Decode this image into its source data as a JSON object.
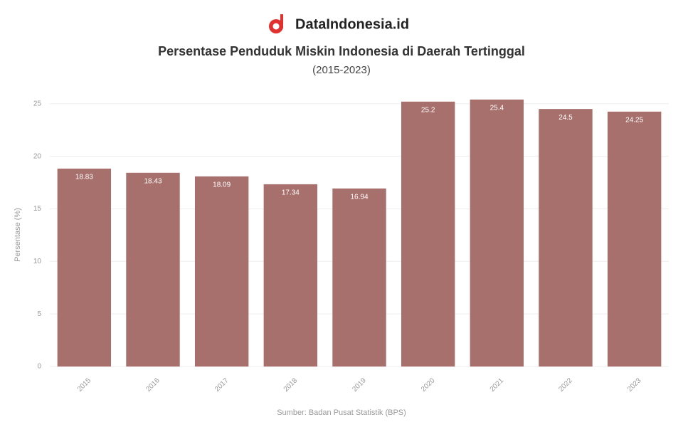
{
  "brand": "DataIndonesia.id",
  "chart_data": {
    "type": "bar",
    "title": "Persentase Penduduk Miskin Indonesia di Daerah Tertinggal",
    "subtitle": "(2015-2023)",
    "y_label": "Persentase (%)",
    "source": "Sumber: Badan Pusat Statistik (BPS)",
    "categories": [
      "2015",
      "2016",
      "2017",
      "2018",
      "2019",
      "2020",
      "2021",
      "2022",
      "2023"
    ],
    "values": [
      18.83,
      18.43,
      18.09,
      17.34,
      16.94,
      25.2,
      25.4,
      24.5,
      24.25
    ],
    "color": "#a8706c",
    "ylim": [
      0,
      26
    ],
    "yticks": [
      0,
      5,
      10,
      15,
      20,
      25
    ],
    "grid": true
  }
}
